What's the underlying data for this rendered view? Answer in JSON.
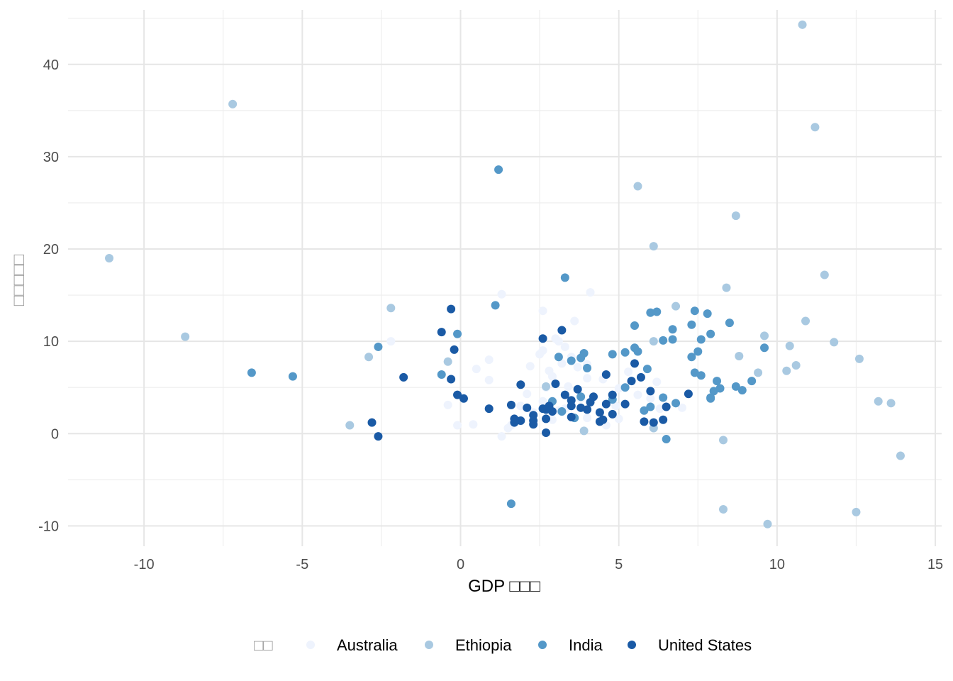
{
  "chart_data": {
    "type": "scatter",
    "title": "",
    "xlabel": "GDP □□□",
    "ylabel": "□□□□□",
    "xlim": [
      -12.4,
      15.2
    ],
    "ylim": [
      -12.2,
      45.9
    ],
    "x_ticks": [
      -10,
      -5,
      0,
      5,
      10,
      15
    ],
    "y_ticks": [
      -10,
      0,
      10,
      20,
      30,
      40
    ],
    "x_tick_labels": [
      "-10",
      "-5",
      "0",
      "5",
      "10",
      "15"
    ],
    "y_tick_labels": [
      "-10",
      "0",
      "10",
      "20",
      "30",
      "40"
    ],
    "grid": true,
    "legend": {
      "position": "bottom",
      "title": "□□"
    },
    "series": [
      {
        "name": "Australia",
        "color": "#eef3fd",
        "points": [
          [
            1.3,
            15.1
          ],
          [
            4.1,
            15.3
          ],
          [
            2.6,
            13.3
          ],
          [
            3.6,
            12.2
          ],
          [
            3.0,
            10.3
          ],
          [
            2.6,
            9.0
          ],
          [
            2.5,
            8.6
          ],
          [
            0.9,
            8.0
          ],
          [
            3.3,
            9.4
          ],
          [
            0.5,
            7.0
          ],
          [
            0.9,
            5.8
          ],
          [
            2.2,
            7.3
          ],
          [
            3.2,
            7.6
          ],
          [
            3.5,
            8.3
          ],
          [
            4.0,
            7.5
          ],
          [
            3.7,
            7.2
          ],
          [
            4.0,
            6.0
          ],
          [
            5.3,
            6.7
          ],
          [
            2.9,
            6.2
          ],
          [
            2.1,
            4.3
          ],
          [
            2.7,
            5.0
          ],
          [
            3.4,
            5.1
          ],
          [
            4.5,
            5.9
          ],
          [
            5.0,
            4.9
          ],
          [
            6.2,
            5.6
          ],
          [
            -0.4,
            3.1
          ],
          [
            -0.1,
            0.9
          ],
          [
            0.4,
            1.0
          ],
          [
            1.3,
            -0.3
          ],
          [
            1.9,
            3.0
          ],
          [
            2.6,
            3.5
          ],
          [
            3.1,
            2.5
          ],
          [
            4.0,
            1.7
          ],
          [
            4.6,
            0.9
          ],
          [
            5.0,
            1.6
          ],
          [
            6.0,
            3.8
          ],
          [
            6.3,
            2.7
          ],
          [
            7.0,
            2.8
          ],
          [
            6.1,
            0.7
          ],
          [
            3.8,
            3.8
          ],
          [
            3.3,
            2.7
          ],
          [
            4.9,
            3.0
          ],
          [
            2.3,
            2.3
          ],
          [
            3.5,
            3.3
          ],
          [
            1.6,
            0.9
          ],
          [
            2.9,
            1.5
          ],
          [
            1.5,
            0.6
          ],
          [
            5.6,
            4.2
          ],
          [
            3.1,
            10.0
          ],
          [
            2.8,
            6.8
          ],
          [
            -2.2,
            10.0
          ]
        ]
      },
      {
        "name": "Ethiopia",
        "color": "#a9c9e1",
        "points": [
          [
            10.8,
            44.3
          ],
          [
            -7.2,
            35.7
          ],
          [
            11.2,
            33.2
          ],
          [
            5.6,
            26.8
          ],
          [
            8.7,
            23.6
          ],
          [
            6.1,
            20.3
          ],
          [
            -11.1,
            19.0
          ],
          [
            11.5,
            17.2
          ],
          [
            8.4,
            15.8
          ],
          [
            -2.2,
            13.6
          ],
          [
            6.8,
            13.8
          ],
          [
            10.9,
            12.2
          ],
          [
            -8.7,
            10.5
          ],
          [
            9.6,
            10.6
          ],
          [
            11.8,
            9.9
          ],
          [
            10.4,
            9.5
          ],
          [
            -2.9,
            8.3
          ],
          [
            8.8,
            8.4
          ],
          [
            12.6,
            8.1
          ],
          [
            10.6,
            7.4
          ],
          [
            10.3,
            6.8
          ],
          [
            9.4,
            6.6
          ],
          [
            -0.4,
            7.8
          ],
          [
            2.7,
            5.1
          ],
          [
            13.2,
            3.5
          ],
          [
            13.6,
            3.3
          ],
          [
            13.9,
            -2.4
          ],
          [
            8.3,
            -0.7
          ],
          [
            8.3,
            -8.2
          ],
          [
            12.5,
            -8.5
          ],
          [
            9.7,
            -9.8
          ],
          [
            -3.5,
            0.9
          ],
          [
            6.1,
            0.6
          ],
          [
            6.1,
            10.0
          ],
          [
            3.9,
            0.3
          ]
        ]
      },
      {
        "name": "India",
        "color": "#5498c8",
        "points": [
          [
            1.2,
            28.6
          ],
          [
            3.3,
            16.9
          ],
          [
            1.1,
            13.9
          ],
          [
            6.0,
            13.1
          ],
          [
            6.2,
            13.2
          ],
          [
            7.4,
            13.3
          ],
          [
            7.8,
            13.0
          ],
          [
            8.5,
            12.0
          ],
          [
            5.5,
            11.7
          ],
          [
            6.7,
            11.3
          ],
          [
            7.3,
            11.8
          ],
          [
            7.9,
            10.8
          ],
          [
            -0.1,
            10.8
          ],
          [
            6.4,
            10.1
          ],
          [
            6.7,
            10.2
          ],
          [
            7.6,
            10.2
          ],
          [
            5.5,
            9.3
          ],
          [
            -2.6,
            9.4
          ],
          [
            9.6,
            9.3
          ],
          [
            5.2,
            8.8
          ],
          [
            4.8,
            8.6
          ],
          [
            3.9,
            8.7
          ],
          [
            7.5,
            8.9
          ],
          [
            3.1,
            8.3
          ],
          [
            3.5,
            7.9
          ],
          [
            3.8,
            8.2
          ],
          [
            7.3,
            8.3
          ],
          [
            5.6,
            8.9
          ],
          [
            4.0,
            7.1
          ],
          [
            5.9,
            7.0
          ],
          [
            -0.6,
            6.4
          ],
          [
            -6.6,
            6.6
          ],
          [
            -5.3,
            6.2
          ],
          [
            7.6,
            6.3
          ],
          [
            7.4,
            6.6
          ],
          [
            8.1,
            5.7
          ],
          [
            9.2,
            5.7
          ],
          [
            8.7,
            5.1
          ],
          [
            8.9,
            4.7
          ],
          [
            8.2,
            4.9
          ],
          [
            5.2,
            5.0
          ],
          [
            4.8,
            3.7
          ],
          [
            6.4,
            3.9
          ],
          [
            6.8,
            3.3
          ],
          [
            7.9,
            3.9
          ],
          [
            8.0,
            4.6
          ],
          [
            5.8,
            2.5
          ],
          [
            6.0,
            2.9
          ],
          [
            2.9,
            3.5
          ],
          [
            3.2,
            2.4
          ],
          [
            3.6,
            1.7
          ],
          [
            1.6,
            -7.6
          ],
          [
            6.5,
            -0.6
          ],
          [
            3.8,
            4.0
          ],
          [
            7.9,
            3.8
          ]
        ]
      },
      {
        "name": "United States",
        "color": "#1a5aa5",
        "points": [
          [
            -0.3,
            13.5
          ],
          [
            3.2,
            11.2
          ],
          [
            -0.6,
            11.0
          ],
          [
            2.6,
            10.3
          ],
          [
            -0.2,
            9.1
          ],
          [
            -1.8,
            6.1
          ],
          [
            -0.3,
            5.9
          ],
          [
            1.9,
            5.3
          ],
          [
            3.0,
            5.4
          ],
          [
            4.6,
            6.4
          ],
          [
            5.5,
            7.6
          ],
          [
            5.7,
            6.1
          ],
          [
            5.4,
            5.7
          ],
          [
            6.0,
            4.6
          ],
          [
            3.7,
            4.8
          ],
          [
            4.2,
            4.0
          ],
          [
            4.8,
            4.2
          ],
          [
            7.2,
            4.3
          ],
          [
            -0.1,
            4.2
          ],
          [
            0.1,
            3.8
          ],
          [
            3.3,
            4.2
          ],
          [
            3.5,
            3.6
          ],
          [
            4.1,
            3.4
          ],
          [
            4.6,
            3.2
          ],
          [
            5.2,
            3.2
          ],
          [
            6.5,
            2.9
          ],
          [
            0.9,
            2.7
          ],
          [
            1.6,
            3.1
          ],
          [
            2.1,
            2.8
          ],
          [
            2.6,
            2.7
          ],
          [
            2.8,
            3.0
          ],
          [
            3.5,
            3.0
          ],
          [
            3.8,
            2.8
          ],
          [
            4.0,
            2.6
          ],
          [
            4.4,
            2.3
          ],
          [
            4.8,
            2.1
          ],
          [
            2.3,
            2.0
          ],
          [
            2.7,
            2.6
          ],
          [
            2.9,
            2.4
          ],
          [
            3.5,
            1.8
          ],
          [
            1.7,
            1.6
          ],
          [
            1.9,
            1.4
          ],
          [
            2.3,
            1.4
          ],
          [
            2.7,
            1.6
          ],
          [
            4.4,
            1.3
          ],
          [
            4.5,
            1.5
          ],
          [
            5.8,
            1.3
          ],
          [
            6.1,
            1.2
          ],
          [
            6.4,
            1.5
          ],
          [
            2.3,
            1.0
          ],
          [
            -2.8,
            1.2
          ],
          [
            1.7,
            1.2
          ],
          [
            2.7,
            0.1
          ],
          [
            -2.6,
            -0.3
          ]
        ]
      }
    ]
  }
}
